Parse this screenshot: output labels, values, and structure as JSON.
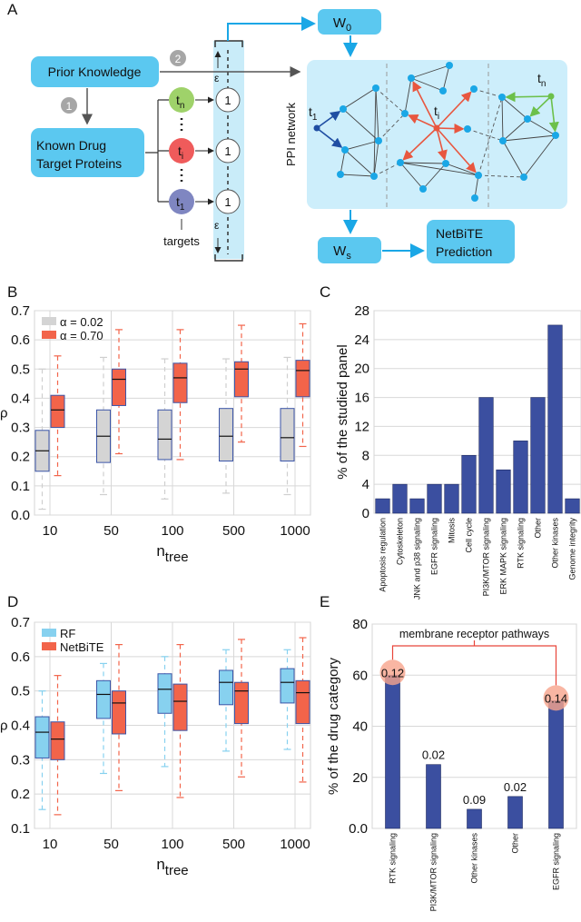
{
  "panels": {
    "a": "A",
    "b": "B",
    "c": "C",
    "d": "D",
    "e": "E"
  },
  "diagram": {
    "prior_knowledge": "Prior Knowledge",
    "known_targets_line1": "Known Drug",
    "known_targets_line2": "Target Proteins",
    "step1": "1",
    "step2": "2",
    "targets_label": "targets",
    "target_n": "t",
    "target_n_sub": "n",
    "target_i": "t",
    "target_i_sub": "i",
    "target_1": "t",
    "target_1_sub": "1",
    "vector_value": "1",
    "epsilon": "ε",
    "w0": "W",
    "w0_sub": "0",
    "ws": "W",
    "ws_sub": "s",
    "ppi_network": "PPI network",
    "prediction_line1": "NetBiTE",
    "prediction_line2": "Prediction",
    "colors": {
      "box": "#5bc8f0",
      "column": "#c9ecf9",
      "network_bg": "#cdeefb",
      "node": "#1aa7e6",
      "t1": "#1f4ea3",
      "ti": "#e8563f",
      "tn": "#6cc04a",
      "arrow": "#1aa7e6"
    }
  },
  "chart_data": [
    {
      "id": "B",
      "type": "box",
      "categories": [
        "10",
        "50",
        "100",
        "500",
        "1000"
      ],
      "xlabel": "n",
      "xlabel_sub": "tree",
      "ylabel": "ρ",
      "ylim": [
        0.0,
        0.7
      ],
      "yticks": [
        "0.0",
        "0.1",
        "0.2",
        "0.3",
        "0.4",
        "0.5",
        "0.6",
        "0.7"
      ],
      "grid": true,
      "legend": "top-left",
      "series": [
        {
          "name": "α = 0.02",
          "color": "#d4d4d4",
          "whisker": "#cfcfcf",
          "boxes": [
            {
              "min": 0.02,
              "q1": 0.15,
              "median": 0.22,
              "q3": 0.29,
              "max": 0.5
            },
            {
              "min": 0.07,
              "q1": 0.18,
              "median": 0.27,
              "q3": 0.36,
              "max": 0.54
            },
            {
              "min": 0.055,
              "q1": 0.19,
              "median": 0.26,
              "q3": 0.36,
              "max": 0.535
            },
            {
              "min": 0.075,
              "q1": 0.185,
              "median": 0.27,
              "q3": 0.365,
              "max": 0.535
            },
            {
              "min": 0.07,
              "q1": 0.185,
              "median": 0.265,
              "q3": 0.365,
              "max": 0.54
            }
          ]
        },
        {
          "name": "α = 0.70",
          "color": "#f2644a",
          "whisker": "#f2644a",
          "boxes": [
            {
              "min": 0.135,
              "q1": 0.3,
              "median": 0.36,
              "q3": 0.41,
              "max": 0.545
            },
            {
              "min": 0.21,
              "q1": 0.375,
              "median": 0.465,
              "q3": 0.5,
              "max": 0.635
            },
            {
              "min": 0.19,
              "q1": 0.385,
              "median": 0.47,
              "q3": 0.52,
              "max": 0.635
            },
            {
              "min": 0.25,
              "q1": 0.405,
              "median": 0.5,
              "q3": 0.525,
              "max": 0.65
            },
            {
              "min": 0.235,
              "q1": 0.405,
              "median": 0.495,
              "q3": 0.53,
              "max": 0.655
            }
          ]
        }
      ]
    },
    {
      "id": "C",
      "type": "bar",
      "categories": [
        "Apoptosis regulation",
        "Cytoskeleton",
        "JNK and p38 signaling",
        "EGFR signaling",
        "Mitosis",
        "Cell cycle",
        "PI3K/MTOR signaling",
        "ERK MAPK signaling",
        "RTK signaling",
        "Other",
        "Other kinases",
        "Genome integrity"
      ],
      "values": [
        2,
        4,
        2,
        4,
        4,
        8,
        16,
        6,
        10,
        16,
        26,
        2
      ],
      "ylabel": "% of the studied panel",
      "ylim": [
        0,
        28
      ],
      "yticks": [
        "0",
        "4",
        "8",
        "12",
        "16",
        "20",
        "24",
        "28"
      ],
      "grid": true,
      "color": "#3b4fa0"
    },
    {
      "id": "D",
      "type": "box",
      "categories": [
        "10",
        "50",
        "100",
        "500",
        "1000"
      ],
      "xlabel": "n",
      "xlabel_sub": "tree",
      "ylabel": "ρ",
      "ylim": [
        0.1,
        0.7
      ],
      "yticks": [
        "0.1",
        "0.2",
        "0.3",
        "0.4",
        "0.5",
        "0.6",
        "0.7"
      ],
      "grid": true,
      "legend": "top-left",
      "series": [
        {
          "name": "RF",
          "color": "#87d1ef",
          "whisker": "#87d1ef",
          "boxes": [
            {
              "min": 0.155,
              "q1": 0.305,
              "median": 0.38,
              "q3": 0.425,
              "max": 0.5
            },
            {
              "min": 0.26,
              "q1": 0.42,
              "median": 0.49,
              "q3": 0.53,
              "max": 0.58
            },
            {
              "min": 0.28,
              "q1": 0.435,
              "median": 0.505,
              "q3": 0.55,
              "max": 0.6
            },
            {
              "min": 0.325,
              "q1": 0.46,
              "median": 0.525,
              "q3": 0.56,
              "max": 0.62
            },
            {
              "min": 0.33,
              "q1": 0.465,
              "median": 0.525,
              "q3": 0.565,
              "max": 0.62
            }
          ]
        },
        {
          "name": "NetBiTE",
          "color": "#f2644a",
          "whisker": "#f2644a",
          "boxes": [
            {
              "min": 0.14,
              "q1": 0.3,
              "median": 0.36,
              "q3": 0.41,
              "max": 0.545
            },
            {
              "min": 0.21,
              "q1": 0.375,
              "median": 0.465,
              "q3": 0.5,
              "max": 0.635
            },
            {
              "min": 0.19,
              "q1": 0.385,
              "median": 0.47,
              "q3": 0.52,
              "max": 0.635
            },
            {
              "min": 0.25,
              "q1": 0.405,
              "median": 0.5,
              "q3": 0.525,
              "max": 0.65
            },
            {
              "min": 0.235,
              "q1": 0.405,
              "median": 0.495,
              "q3": 0.53,
              "max": 0.655
            }
          ]
        }
      ]
    },
    {
      "id": "E",
      "type": "bar",
      "categories": [
        "RTK signaling",
        "PI3K/MTOR signaling",
        "Other kinases",
        "Other",
        "EGFR signaling"
      ],
      "values": [
        60,
        25,
        7.5,
        12.5,
        50
      ],
      "data_labels": [
        "0.12",
        "0.02",
        "0.09",
        "0.02",
        "0.14"
      ],
      "highlighted": [
        true,
        false,
        false,
        false,
        true
      ],
      "annotation": "membrane receptor pathways",
      "ylabel": "% of the drug category",
      "ylim": [
        0,
        80
      ],
      "yticks": [
        "0.0",
        "20",
        "40",
        "60",
        "80"
      ],
      "grid": true,
      "color": "#3b4fa0"
    }
  ]
}
